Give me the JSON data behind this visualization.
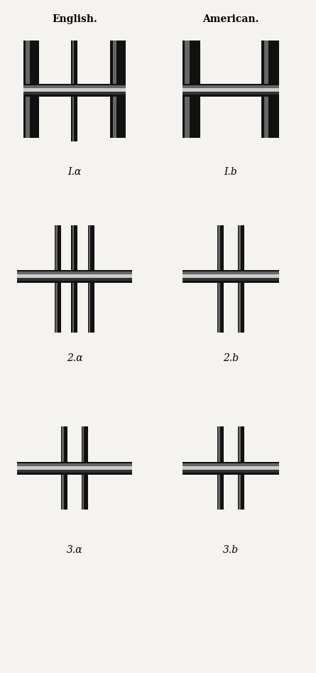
{
  "title_left": "English.",
  "title_right": "American.",
  "title_fontsize": 10,
  "label_fontsize": 10,
  "background_color": "#f5f3f0",
  "dark": "#111111",
  "mid_dark": "#333333",
  "mid": "#666666",
  "light": "#999999",
  "highlight": "#cccccc",
  "labels": [
    [
      "I.α",
      "I.b"
    ],
    [
      "2.α",
      "2.b"
    ],
    [
      "3.α",
      "3.b"
    ]
  ]
}
